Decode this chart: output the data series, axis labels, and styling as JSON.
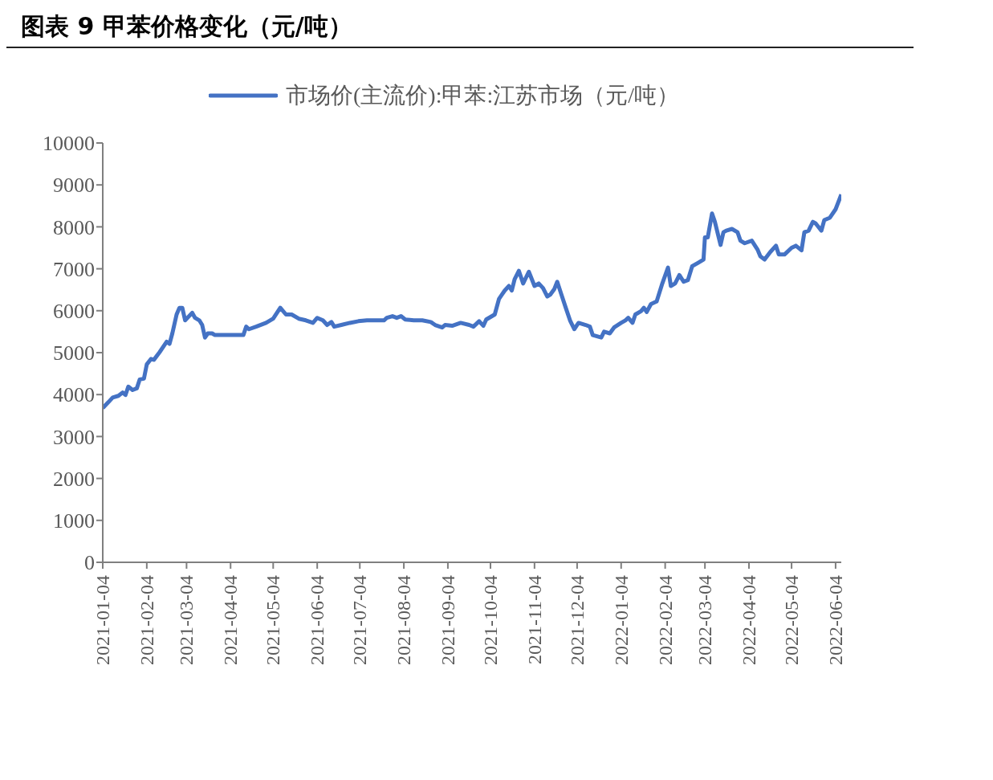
{
  "chart_data": {
    "type": "line",
    "title": "图表 9  甲苯价格变化（元/吨）",
    "legend": "top",
    "grid": false,
    "marker": "none",
    "line_style": "solid",
    "ylim": [
      0,
      10000
    ],
    "yticks": [
      0,
      1000,
      2000,
      3000,
      4000,
      5000,
      6000,
      7000,
      8000,
      9000,
      10000
    ],
    "xlim": [
      "2021-01-04",
      "2022-06-08"
    ],
    "xticks": [
      "2021-01-04",
      "2021-02-04",
      "2021-03-04",
      "2021-04-04",
      "2021-05-04",
      "2021-06-04",
      "2021-07-04",
      "2021-08-04",
      "2021-09-04",
      "2021-10-04",
      "2021-11-04",
      "2021-12-04",
      "2022-01-04",
      "2022-02-04",
      "2022-03-04",
      "2022-04-04",
      "2022-05-04",
      "2022-06-04"
    ],
    "x": [
      "2021-01-04",
      "2021-01-08",
      "2021-01-11",
      "2021-01-15",
      "2021-01-18",
      "2021-01-20",
      "2021-01-22",
      "2021-01-25",
      "2021-01-28",
      "2021-01-30",
      "2021-02-02",
      "2021-02-04",
      "2021-02-07",
      "2021-02-09",
      "2021-02-13",
      "2021-02-18",
      "2021-02-20",
      "2021-02-22",
      "2021-02-25",
      "2021-02-27",
      "2021-03-01",
      "2021-03-03",
      "2021-03-08",
      "2021-03-10",
      "2021-03-13",
      "2021-03-15",
      "2021-03-17",
      "2021-03-19",
      "2021-03-22",
      "2021-03-24",
      "2021-04-13",
      "2021-04-15",
      "2021-04-17",
      "2021-04-22",
      "2021-04-29",
      "2021-05-04",
      "2021-05-09",
      "2021-05-13",
      "2021-05-17",
      "2021-05-22",
      "2021-05-27",
      "2021-06-01",
      "2021-06-04",
      "2021-06-08",
      "2021-06-11",
      "2021-06-14",
      "2021-06-16",
      "2021-06-21",
      "2021-06-27",
      "2021-07-03",
      "2021-07-09",
      "2021-07-21",
      "2021-07-23",
      "2021-07-27",
      "2021-07-30",
      "2021-08-02",
      "2021-08-05",
      "2021-08-11",
      "2021-08-17",
      "2021-08-23",
      "2021-08-26",
      "2021-08-31",
      "2021-09-02",
      "2021-09-07",
      "2021-09-13",
      "2021-09-19",
      "2021-09-22",
      "2021-09-26",
      "2021-09-29",
      "2021-10-01",
      "2021-10-07",
      "2021-10-10",
      "2021-10-12",
      "2021-10-14",
      "2021-10-17",
      "2021-10-19",
      "2021-10-21",
      "2021-10-24",
      "2021-10-27",
      "2021-10-31",
      "2021-11-04",
      "2021-11-07",
      "2021-11-10",
      "2021-11-13",
      "2021-11-15",
      "2021-11-18",
      "2021-11-20",
      "2021-11-23",
      "2021-11-26",
      "2021-11-29",
      "2021-12-02",
      "2021-12-05",
      "2021-12-10",
      "2021-12-13",
      "2021-12-15",
      "2021-12-21",
      "2021-12-23",
      "2021-12-27",
      "2021-12-30",
      "2022-01-04",
      "2022-01-07",
      "2022-01-09",
      "2022-01-12",
      "2022-01-14",
      "2022-01-18",
      "2022-01-20",
      "2022-01-22",
      "2022-01-25",
      "2022-01-29",
      "2022-02-02",
      "2022-02-06",
      "2022-02-08",
      "2022-02-11",
      "2022-02-14",
      "2022-02-17",
      "2022-02-20",
      "2022-02-23",
      "2022-02-27",
      "2022-03-03",
      "2022-03-04",
      "2022-03-06",
      "2022-03-09",
      "2022-03-11",
      "2022-03-15",
      "2022-03-17",
      "2022-03-19",
      "2022-03-23",
      "2022-03-27",
      "2022-03-29",
      "2022-04-01",
      "2022-04-06",
      "2022-04-10",
      "2022-04-12",
      "2022-04-15",
      "2022-04-19",
      "2022-04-23",
      "2022-04-25",
      "2022-04-29",
      "2022-05-04",
      "2022-05-07",
      "2022-05-11",
      "2022-05-13",
      "2022-05-16",
      "2022-05-19",
      "2022-05-21",
      "2022-05-25",
      "2022-05-27",
      "2022-05-31",
      "2022-06-04",
      "2022-06-08"
    ],
    "series": [
      {
        "name": "市场价(主流价):甲苯:江苏市场（元/吨）",
        "color": "#4472c4",
        "values": [
          3680,
          3820,
          3930,
          3970,
          4050,
          3990,
          4190,
          4110,
          4150,
          4360,
          4380,
          4720,
          4850,
          4830,
          5010,
          5260,
          5210,
          5460,
          5910,
          6070,
          6070,
          5770,
          5950,
          5830,
          5770,
          5660,
          5360,
          5460,
          5460,
          5420,
          5420,
          5620,
          5560,
          5620,
          5710,
          5810,
          6070,
          5910,
          5910,
          5810,
          5770,
          5710,
          5830,
          5770,
          5660,
          5730,
          5620,
          5660,
          5710,
          5750,
          5770,
          5770,
          5830,
          5870,
          5830,
          5870,
          5790,
          5770,
          5770,
          5730,
          5660,
          5600,
          5660,
          5640,
          5710,
          5660,
          5620,
          5750,
          5640,
          5790,
          5910,
          6280,
          6380,
          6480,
          6590,
          6480,
          6750,
          6950,
          6650,
          6930,
          6590,
          6650,
          6540,
          6340,
          6380,
          6520,
          6690,
          6380,
          6070,
          5770,
          5560,
          5710,
          5660,
          5620,
          5420,
          5360,
          5500,
          5460,
          5600,
          5710,
          5770,
          5830,
          5710,
          5910,
          5990,
          6070,
          5970,
          6160,
          6220,
          6650,
          7030,
          6590,
          6650,
          6850,
          6690,
          6730,
          7060,
          7140,
          7220,
          7750,
          7750,
          8320,
          8120,
          7570,
          7870,
          7910,
          7950,
          7870,
          7670,
          7610,
          7670,
          7460,
          7300,
          7220,
          7400,
          7550,
          7340,
          7340,
          7500,
          7550,
          7440,
          7870,
          7910,
          8120,
          8080,
          7910,
          8160,
          8220,
          8420,
          8770
        ]
      }
    ]
  }
}
